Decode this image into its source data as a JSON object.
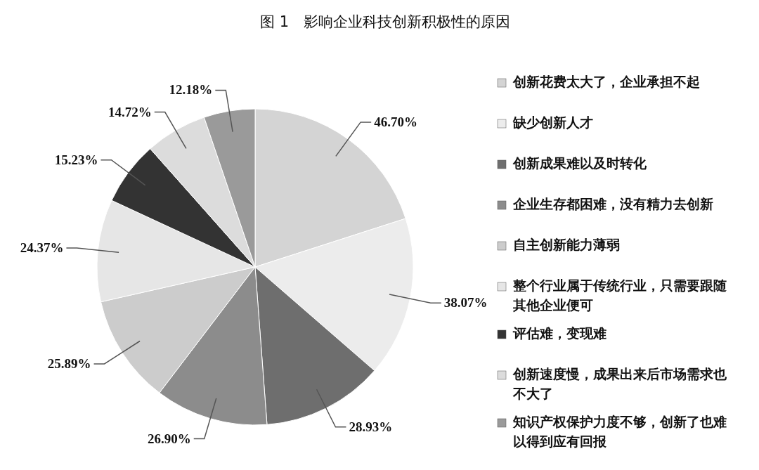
{
  "chart_data": {
    "type": "pie",
    "title": "图 1　影响企业科技创新积极性的原因",
    "categories": [
      "创新花费太大了，企业承担不起",
      "缺少创新人才",
      "创新成果难以及时转化",
      "企业生存都困难，没有精力去创新",
      "自主创新能力薄弱",
      "整个行业属于传统行业，只需要跟随其他企业便可",
      "评估难，变现难",
      "创新速度慢，成果出来后市场需求也不大了",
      "知识产权保护力度不够，创新了也难以得到应有回报"
    ],
    "values": [
      46.7,
      38.07,
      28.93,
      26.9,
      25.89,
      24.37,
      15.23,
      14.72,
      12.18
    ],
    "value_labels": [
      "46.70%",
      "38.07%",
      "28.93%",
      "26.90%",
      "25.89%",
      "24.37%",
      "15.23%",
      "14.72%",
      "12.18%"
    ],
    "colors": [
      "#d4d4d4",
      "#ececec",
      "#6e6e6e",
      "#8c8c8c",
      "#cccccc",
      "#e6e6e6",
      "#333333",
      "#dcdcdc",
      "#9a9a9a"
    ],
    "legend": "right"
  }
}
